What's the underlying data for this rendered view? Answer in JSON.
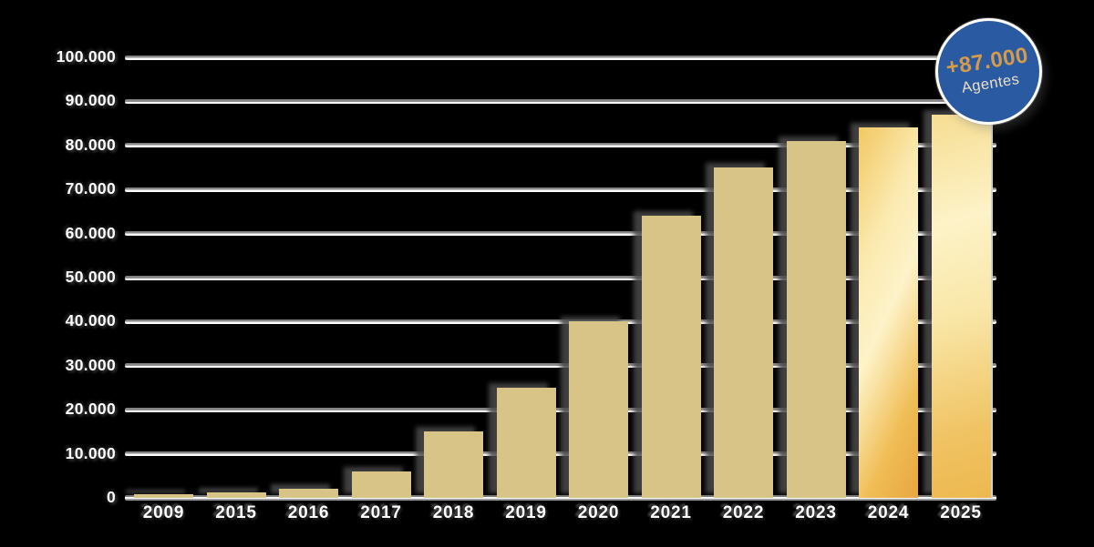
{
  "chart_data": {
    "type": "bar",
    "title": "",
    "xlabel": "",
    "ylabel": "",
    "categories": [
      "2009",
      "2015",
      "2016",
      "2017",
      "2018",
      "2019",
      "2020",
      "2021",
      "2022",
      "2023",
      "2024",
      "2025"
    ],
    "values": [
      800,
      1200,
      2000,
      6000,
      15000,
      25000,
      40000,
      64000,
      75000,
      81000,
      84000,
      87000
    ],
    "ylim": [
      0,
      100000
    ],
    "ytick_step": 10000,
    "ytick_labels": [
      "0",
      "10.000",
      "20.000",
      "30.000",
      "40.000",
      "50.000",
      "60.000",
      "70.000",
      "80.000",
      "90.000",
      "100.000"
    ],
    "grid": true,
    "legend": false,
    "bar_color_default": "#d9c487",
    "gradient_bar_years": [
      "2024",
      "2025"
    ],
    "annotation": {
      "text": "+87.000 Agentes",
      "attached_to": "2025",
      "shape": "circle-badge"
    }
  },
  "badge": {
    "value": "+87.000",
    "label": "Agentes",
    "bg_color": "#2a5aa2",
    "ring_color": "#ffffff",
    "value_color": "#d59b4a",
    "label_color": "#ecdfc4"
  },
  "colors": {
    "background": "#000000",
    "gridline_gray": "#8a8a8a",
    "gridline_white": "#ffffff",
    "axis_text": "#ffffff",
    "bar_shadow": "#4a4a4a"
  }
}
